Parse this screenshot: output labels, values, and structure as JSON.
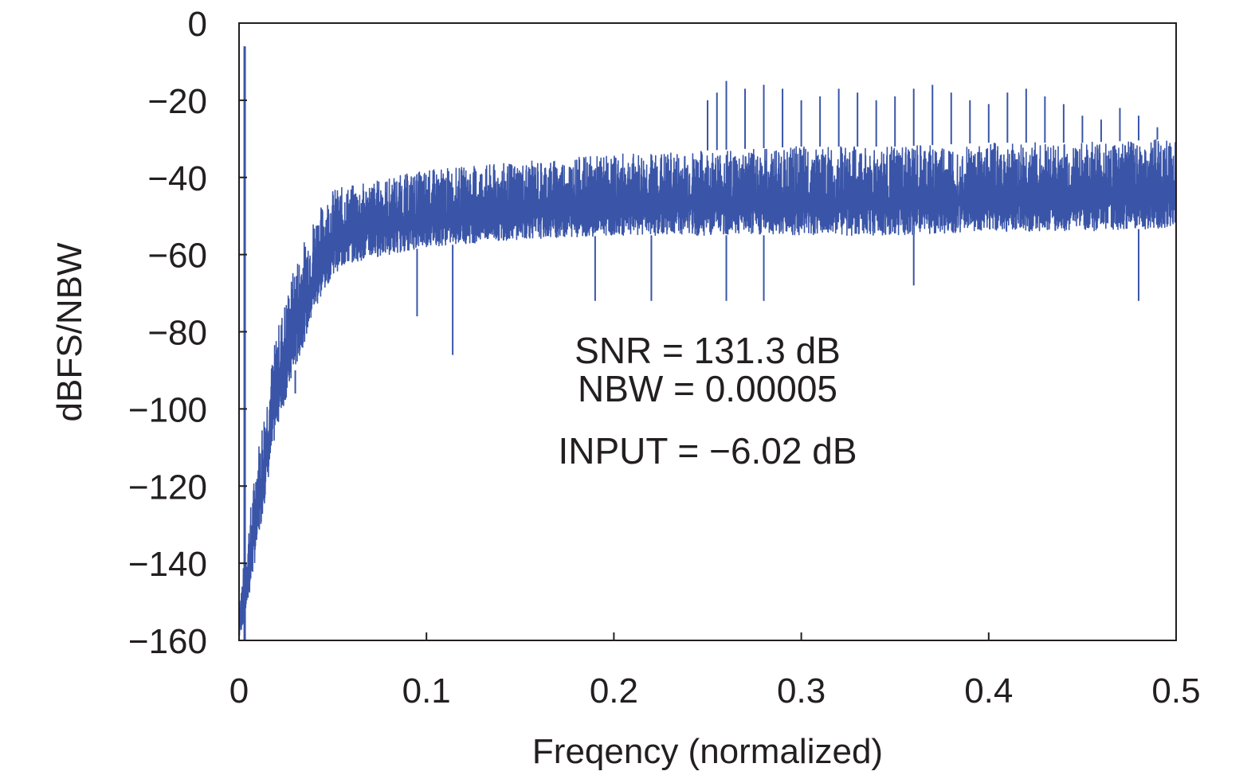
{
  "chart_data": {
    "type": "line",
    "title": "",
    "xlabel": "Freqency (normalized)",
    "ylabel": "dBFS/NBW",
    "xlim": [
      0,
      0.5
    ],
    "ylim": [
      -160,
      0
    ],
    "x_ticks": [
      0,
      0.1,
      0.2,
      0.3,
      0.4,
      0.5
    ],
    "x_tick_labels": [
      "0",
      "0.1",
      "0.2",
      "0.3",
      "0.4",
      "0.5"
    ],
    "y_ticks": [
      0,
      -20,
      -40,
      -60,
      -80,
      -100,
      -120,
      -140,
      -160
    ],
    "y_tick_labels": [
      "0",
      "−20",
      "−40",
      "−60",
      "−80",
      "−100",
      "−120",
      "−140",
      "−160"
    ],
    "grid": false,
    "legend": "none",
    "series": [
      {
        "color": "#3a55a8",
        "signal": {
          "x": 0.003,
          "y": -6
        },
        "noise_floor_envelope": {
          "x": [
            0.0,
            0.005,
            0.01,
            0.02,
            0.03,
            0.04,
            0.05,
            0.06,
            0.1,
            0.15,
            0.2,
            0.25,
            0.3,
            0.35,
            0.4,
            0.45,
            0.5
          ],
          "upper": [
            -150,
            -130,
            -110,
            -80,
            -62,
            -50,
            -43,
            -42,
            -38,
            -36,
            -34,
            -33,
            -32,
            -32,
            -31,
            -31,
            -30
          ],
          "lower": [
            -160,
            -150,
            -135,
            -105,
            -90,
            -75,
            -65,
            -62,
            -58,
            -56,
            -55,
            -55,
            -55,
            -55,
            -54,
            -54,
            -53
          ]
        },
        "spurs": [
          {
            "x": 0.25,
            "y": -20
          },
          {
            "x": 0.255,
            "y": -18
          },
          {
            "x": 0.26,
            "y": -15
          },
          {
            "x": 0.27,
            "y": -17
          },
          {
            "x": 0.28,
            "y": -16
          },
          {
            "x": 0.29,
            "y": -17
          },
          {
            "x": 0.3,
            "y": -20
          },
          {
            "x": 0.31,
            "y": -19
          },
          {
            "x": 0.32,
            "y": -17
          },
          {
            "x": 0.33,
            "y": -18
          },
          {
            "x": 0.34,
            "y": -20
          },
          {
            "x": 0.35,
            "y": -19
          },
          {
            "x": 0.36,
            "y": -17
          },
          {
            "x": 0.37,
            "y": -16
          },
          {
            "x": 0.38,
            "y": -18
          },
          {
            "x": 0.39,
            "y": -20
          },
          {
            "x": 0.4,
            "y": -21
          },
          {
            "x": 0.41,
            "y": -18
          },
          {
            "x": 0.42,
            "y": -17
          },
          {
            "x": 0.43,
            "y": -19
          },
          {
            "x": 0.44,
            "y": -21
          },
          {
            "x": 0.45,
            "y": -24
          },
          {
            "x": 0.46,
            "y": -25
          },
          {
            "x": 0.47,
            "y": -22
          },
          {
            "x": 0.48,
            "y": -24
          },
          {
            "x": 0.49,
            "y": -27
          }
        ],
        "dips": [
          {
            "x": 0.03,
            "y": -96
          },
          {
            "x": 0.095,
            "y": -76
          },
          {
            "x": 0.114,
            "y": -86
          },
          {
            "x": 0.19,
            "y": -72
          },
          {
            "x": 0.22,
            "y": -72
          },
          {
            "x": 0.26,
            "y": -72
          },
          {
            "x": 0.28,
            "y": -72
          },
          {
            "x": 0.36,
            "y": -68
          },
          {
            "x": 0.48,
            "y": -72
          }
        ]
      }
    ],
    "annotations": [
      {
        "text": "SNR = 131.3 dB"
      },
      {
        "text": "NBW = 0.00005"
      },
      {
        "text": "INPUT = −6.02 dB"
      }
    ]
  }
}
